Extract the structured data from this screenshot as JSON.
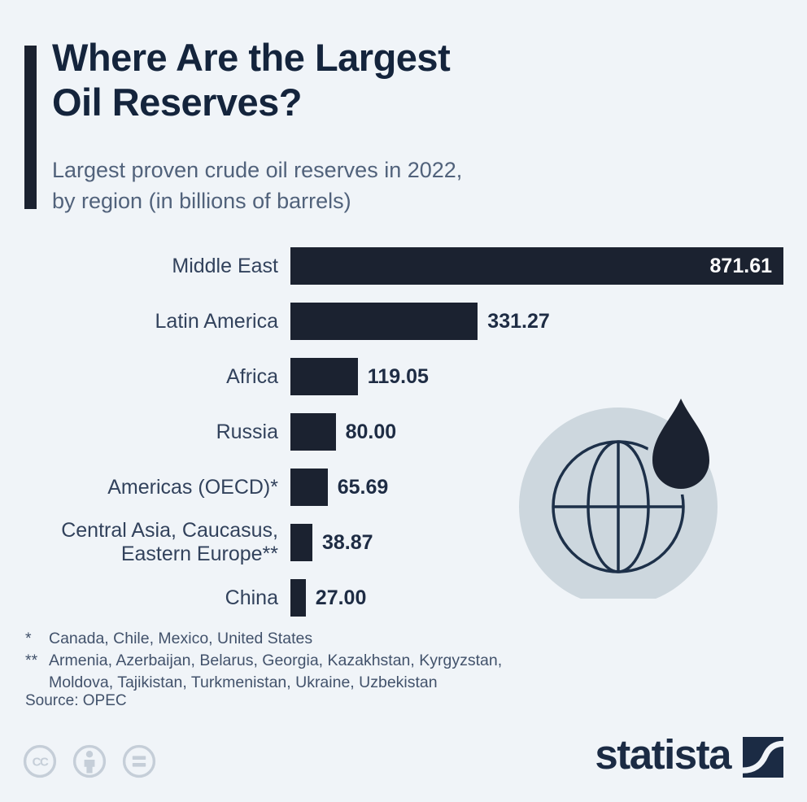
{
  "header": {
    "title": "Where Are the Largest\nOil Reserves?",
    "subtitle": "Largest proven crude oil reserves in 2022,\nby region (in billions of barrels)"
  },
  "chart_data": {
    "type": "bar",
    "orientation": "horizontal",
    "title": "Largest proven crude oil reserves in 2022, by region (in billions of barrels)",
    "categories": [
      "Middle East",
      "Latin America",
      "Africa",
      "Russia",
      "Americas (OECD)*",
      "Central Asia, Caucasus,\nEastern Europe**",
      "China"
    ],
    "values": [
      871.61,
      331.27,
      119.05,
      80.0,
      65.69,
      38.87,
      27.0
    ],
    "value_labels": [
      "871.61",
      "331.27",
      "119.05",
      "80.00",
      "65.69",
      "38.87",
      "27.00"
    ],
    "xlim": [
      0,
      871.61
    ],
    "unit": "billions of barrels",
    "legend": "none",
    "grid": false,
    "bar_color": "#1b2230"
  },
  "footnotes": [
    {
      "marker": "*",
      "text": "Canada, Chile, Mexico, United States"
    },
    {
      "marker": "**",
      "text": "Armenia, Azerbaijan, Belarus, Georgia, Kazakhstan, Kyrgyzstan, Moldova, Tajikistan, Turkmenistan, Ukraine, Uzbekistan"
    }
  ],
  "source": "Source: OPEC",
  "footer": {
    "license_icons": [
      "cc-icon",
      "attribution-icon",
      "no-derivatives-icon"
    ],
    "brand": "statista"
  },
  "colors": {
    "background": "#f0f4f8",
    "bar": "#1b2230",
    "title_text": "#14243c",
    "subtitle_text": "#51627b",
    "label_text": "#32425c",
    "value_inside_text": "#ffffff",
    "globe_disc": "#cdd7de",
    "globe_stroke": "#1d3049",
    "license_gray": "#c5ced8",
    "brand_navy": "#1b2b44"
  }
}
